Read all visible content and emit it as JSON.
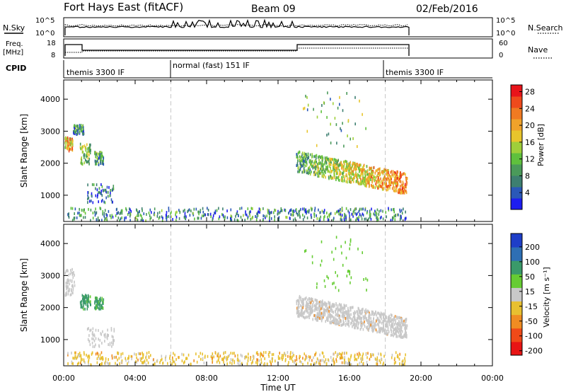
{
  "header": {
    "site": "Fort Hays East (fitACF)",
    "beam": "Beam 09",
    "date": "02/Feb/2016"
  },
  "summary_panels": {
    "sky_label": "N.Sky",
    "search_label": "N.Search",
    "sky_ticks": [
      "10^5",
      "10^0"
    ],
    "search_ticks": [
      "10^5",
      "10^0"
    ],
    "freq_label_line1": "Freq.",
    "freq_label_line2": "[MHz]",
    "freq_ticks": [
      "18",
      "8"
    ],
    "nave_label": "Nave",
    "nave_ticks": [
      "60",
      "0"
    ],
    "cpid_label": "CPID",
    "cpid_segments": [
      "themis 3300 IF",
      "normal (fast) 151 IF",
      "themis 3300 IF"
    ]
  },
  "chart_data": [
    {
      "type": "scatter",
      "title": "Power",
      "ylabel": "Slant Range [km]",
      "xlabel": "",
      "xlim": [
        0,
        24
      ],
      "ylim": [
        180,
        4600
      ],
      "yticks": [
        "1000",
        "2000",
        "3000",
        "4000"
      ],
      "xticks": [
        "00:00",
        "04:00",
        "08:00",
        "12:00",
        "16:00",
        "20:00",
        "00:00"
      ],
      "colorbar": {
        "label": "Power [dB]",
        "ticks": [
          "4",
          "8",
          "12",
          "16",
          "20",
          "24",
          "28"
        ],
        "colors": [
          "#1d1df0",
          "#2a58b8",
          "#3d7f70",
          "#4a9a5a",
          "#5fc03d",
          "#9fcf3a",
          "#e8c52c",
          "#f0a22a",
          "#f07a22",
          "#ef4a1c",
          "#e8141a"
        ]
      },
      "regions": [
        {
          "name": "early-echo-1",
          "t": [
            0.05,
            0.5
          ],
          "range": [
            2380,
            2800
          ],
          "power": 20
        },
        {
          "name": "early-echo-2",
          "t": [
            0.5,
            1.1
          ],
          "range": [
            2900,
            3200
          ],
          "power": 8
        },
        {
          "name": "early-echo-3",
          "t": [
            0.9,
            1.5
          ],
          "range": [
            1950,
            2600
          ],
          "power": 14
        },
        {
          "name": "early-echo-4",
          "t": [
            1.7,
            2.2
          ],
          "range": [
            1950,
            2350
          ],
          "power": 10
        },
        {
          "name": "early-echo-5",
          "t": [
            1.3,
            2.8
          ],
          "range": [
            750,
            1350
          ],
          "power": 6
        },
        {
          "name": "ground-band",
          "t": [
            0.2,
            19.2
          ],
          "range": [
            200,
            600
          ],
          "power": 8
        },
        {
          "name": "evening-band",
          "t": [
            13.0,
            19.2
          ],
          "range": [
            1150,
            2300
          ],
          "power": 22
        },
        {
          "name": "scattered-high",
          "t": [
            13.3,
            17.0
          ],
          "range": [
            2500,
            4300
          ],
          "power": 12
        }
      ]
    },
    {
      "type": "scatter",
      "title": "Velocity",
      "ylabel": "Slant Range [km]",
      "xlabel": "Time UT",
      "xlim": [
        0,
        24
      ],
      "ylim": [
        180,
        4600
      ],
      "yticks": [
        "1000",
        "2000",
        "3000",
        "4000"
      ],
      "xticks": [
        "00:00",
        "04:00",
        "08:00",
        "12:00",
        "16:00",
        "20:00",
        "00:00"
      ],
      "colorbar": {
        "label": "Velocity [m s⁻¹]",
        "ticks": [
          "200",
          "100",
          "50",
          "15",
          "-15",
          "-50",
          "-100",
          "-200"
        ],
        "colors": [
          "#1e3ec8",
          "#2e6fb4",
          "#3a9a6a",
          "#66cc33",
          "#c8c8c8",
          "#e8c030",
          "#f08c22",
          "#f04a18",
          "#e81414"
        ]
      },
      "regions": [
        {
          "name": "early-echo-1",
          "t": [
            0.05,
            0.6
          ],
          "range": [
            2380,
            3200
          ],
          "velocity": 0
        },
        {
          "name": "early-echo-2",
          "t": [
            0.9,
            1.5
          ],
          "range": [
            1950,
            2400
          ],
          "velocity": 60
        },
        {
          "name": "early-echo-3",
          "t": [
            1.7,
            2.2
          ],
          "range": [
            1950,
            2300
          ],
          "velocity": 60
        },
        {
          "name": "early-echo-4",
          "t": [
            1.3,
            2.8
          ],
          "range": [
            750,
            1350
          ],
          "velocity": 0
        },
        {
          "name": "ground-band",
          "t": [
            0.2,
            19.2
          ],
          "range": [
            200,
            600
          ],
          "velocity": -30
        },
        {
          "name": "evening-band",
          "t": [
            13.0,
            19.2
          ],
          "range": [
            1150,
            2300
          ],
          "velocity": 0
        },
        {
          "name": "scattered-high",
          "t": [
            13.3,
            17.0
          ],
          "range": [
            2500,
            4300
          ],
          "velocity": 30
        }
      ]
    }
  ]
}
